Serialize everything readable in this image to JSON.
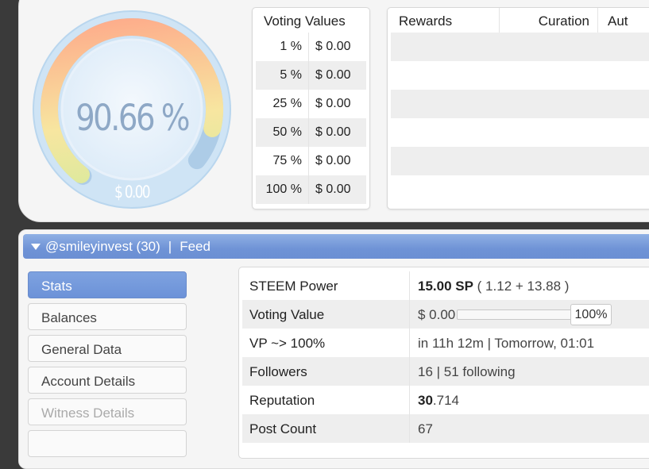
{
  "gauge": {
    "value": "90.66 %",
    "sub_value": "$ 0.00",
    "level": 0.9066,
    "colors": {
      "start": "#ff9f86",
      "mid": "#f7e6a0",
      "end": "#c9ec9a",
      "track": "#b9d6ee",
      "face": "#eaf3fb"
    }
  },
  "voting_values": {
    "title": "Voting Values",
    "rows": [
      {
        "pct": "1 %",
        "value": "$ 0.00"
      },
      {
        "pct": "5 %",
        "value": "$ 0.00"
      },
      {
        "pct": "25 %",
        "value": "$ 0.00"
      },
      {
        "pct": "50 %",
        "value": "$ 0.00"
      },
      {
        "pct": "75 %",
        "value": "$ 0.00"
      },
      {
        "pct": "100 %",
        "value": "$ 0.00"
      }
    ]
  },
  "rewards": {
    "headers": [
      "Rewards",
      "Curation",
      "Aut"
    ]
  },
  "feed_bar": {
    "account": "@smileyinvest (30)",
    "separator": "|",
    "feed": "Feed"
  },
  "sidebar": {
    "items": [
      {
        "label": "Stats",
        "state": "active"
      },
      {
        "label": "Balances",
        "state": "normal"
      },
      {
        "label": "General Data",
        "state": "normal"
      },
      {
        "label": "Account Details",
        "state": "normal"
      },
      {
        "label": "Witness Details",
        "state": "disabled"
      }
    ]
  },
  "stats": {
    "steem_power": {
      "label": "STEEM Power",
      "main": "15.00 SP",
      "detail": " ( 1.12 + 13.88 )"
    },
    "voting_value": {
      "label": "Voting Value",
      "value": "$ 0.00",
      "slider_pct": "100%"
    },
    "vp": {
      "label": "VP ~> 100%",
      "value": "in 11h 12m | Tomorrow, 01:01"
    },
    "followers": {
      "label": "Followers",
      "value": "16 | 51 following"
    },
    "reputation": {
      "label": "Reputation",
      "main": "30",
      "fraction": ".714"
    },
    "post_count": {
      "label": "Post Count",
      "value": "67"
    }
  },
  "colors": {
    "accent": "#6f93d6",
    "background": "#3a3a3a",
    "panel": "#f5f5f5"
  }
}
